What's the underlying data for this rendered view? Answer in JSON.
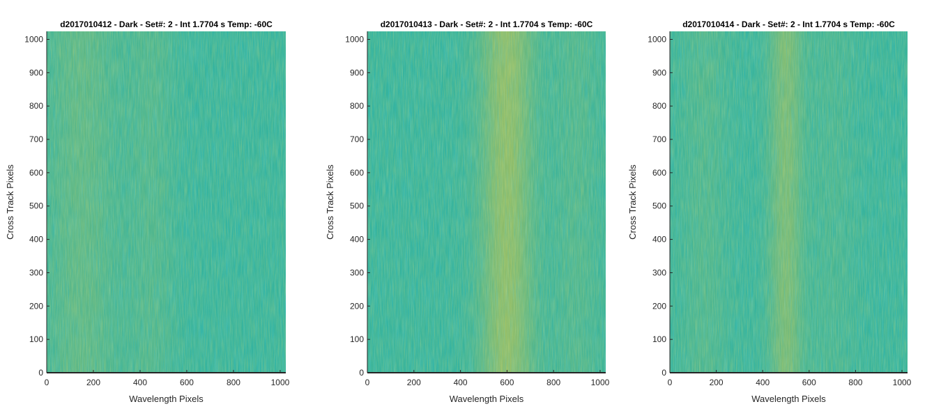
{
  "chart_data": [
    {
      "type": "heatmap",
      "title": "d2017010412 - Dark - Set#: 2 - Int 1.7704 s Temp: -60C",
      "xlabel": "Wavelength Pixels",
      "ylabel": "Cross Track Pixels",
      "xlim": [
        0,
        1024
      ],
      "ylim": [
        0,
        1024
      ],
      "xticks": [
        0,
        200,
        400,
        600,
        800,
        1000
      ],
      "yticks": [
        0,
        100,
        200,
        300,
        400,
        500,
        600,
        700,
        800,
        900,
        1000
      ],
      "colormap": "parula",
      "bright_bands": [
        {
          "center": 150,
          "width": 300,
          "strength": 0.25
        },
        {
          "center": 450,
          "width": 200,
          "strength": 0.15
        }
      ]
    },
    {
      "type": "heatmap",
      "title": "d2017010413 - Dark - Set#: 2 - Int 1.7704 s Temp: -60C",
      "xlabel": "Wavelength Pixels",
      "ylabel": "Cross Track Pixels",
      "xlim": [
        0,
        1024
      ],
      "ylim": [
        0,
        1024
      ],
      "xticks": [
        0,
        200,
        400,
        600,
        800,
        1000
      ],
      "yticks": [
        0,
        100,
        200,
        300,
        400,
        500,
        600,
        700,
        800,
        900,
        1000
      ],
      "colormap": "parula",
      "bright_bands": [
        {
          "center": 600,
          "width": 220,
          "strength": 0.6
        },
        {
          "center": 900,
          "width": 200,
          "strength": 0.15
        }
      ]
    },
    {
      "type": "heatmap",
      "title": "d2017010414 - Dark - Set#: 2 - Int 1.7704 s Temp: -60C",
      "xlabel": "Wavelength Pixels",
      "ylabel": "Cross Track Pixels",
      "xlim": [
        0,
        1024
      ],
      "ylim": [
        0,
        1024
      ],
      "xticks": [
        0,
        200,
        400,
        600,
        800,
        1000
      ],
      "yticks": [
        0,
        100,
        200,
        300,
        400,
        500,
        600,
        700,
        800,
        900,
        1000
      ],
      "colormap": "parula",
      "bright_bands": [
        {
          "center": 500,
          "width": 140,
          "strength": 0.45
        },
        {
          "center": 150,
          "width": 200,
          "strength": 0.15
        },
        {
          "center": 700,
          "width": 200,
          "strength": 0.1
        }
      ]
    }
  ],
  "colors": {
    "axis": "#262626",
    "parula_low": "#1fa2c8",
    "parula_mid": "#36b39c",
    "parula_high": "#c7c247"
  }
}
